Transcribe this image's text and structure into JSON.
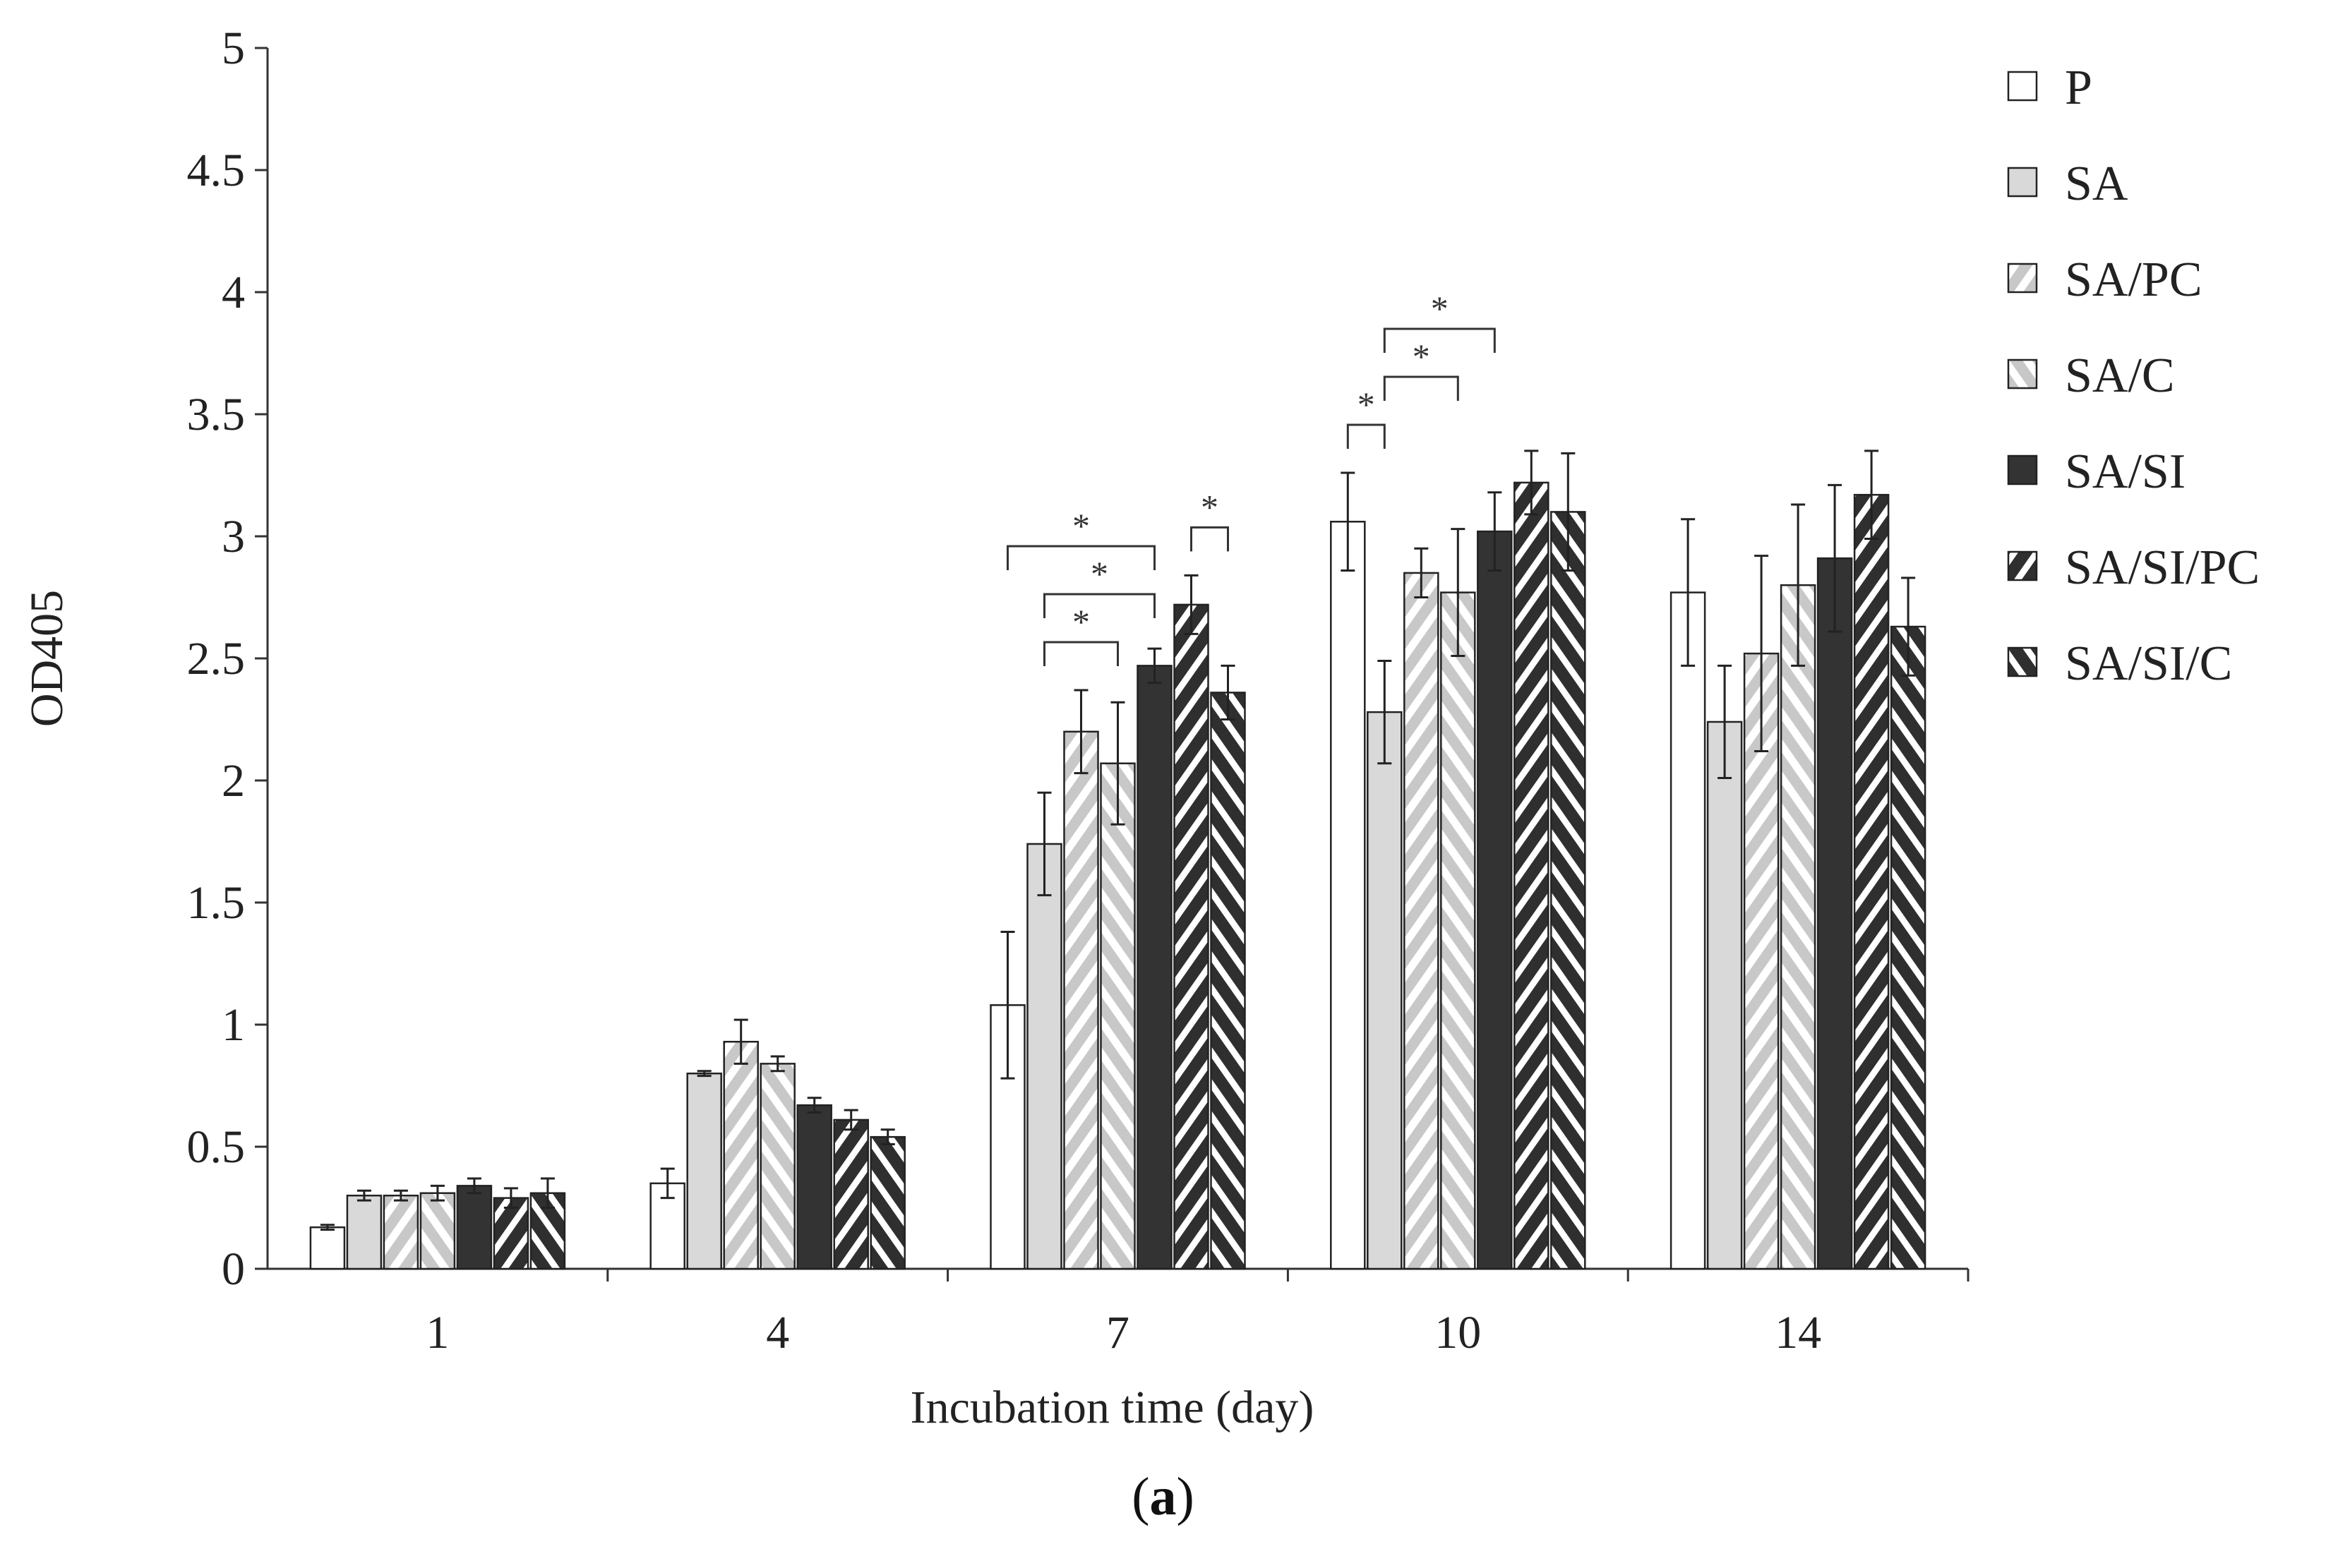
{
  "chart_data": {
    "type": "bar",
    "title": "",
    "xlabel": "Incubation time (day)",
    "ylabel": "OD405",
    "ylim": [
      0,
      5
    ],
    "yticks": [
      "0",
      "0.5",
      "1",
      "1.5",
      "2",
      "2.5",
      "3",
      "3.5",
      "4",
      "4.5",
      "5"
    ],
    "categories": [
      "1",
      "4",
      "7",
      "10",
      "14"
    ],
    "legend_position": "right",
    "series": [
      {
        "name": "P",
        "pattern": "white",
        "values": [
          0.17,
          0.35,
          1.08,
          3.06,
          2.77
        ],
        "errors": [
          0.01,
          0.06,
          0.3,
          0.2,
          0.3
        ]
      },
      {
        "name": "SA",
        "pattern": "lightgray",
        "values": [
          0.3,
          0.8,
          1.74,
          2.28,
          2.24
        ],
        "errors": [
          0.02,
          0.01,
          0.21,
          0.21,
          0.23
        ]
      },
      {
        "name": "SA/PC",
        "pattern": "hatch-light-forward",
        "values": [
          0.3,
          0.93,
          2.2,
          2.85,
          2.52
        ],
        "errors": [
          0.02,
          0.09,
          0.17,
          0.1,
          0.4
        ]
      },
      {
        "name": "SA/C",
        "pattern": "hatch-light-back",
        "values": [
          0.31,
          0.84,
          2.07,
          2.77,
          2.8
        ],
        "errors": [
          0.03,
          0.03,
          0.25,
          0.26,
          0.33
        ]
      },
      {
        "name": "SA/SI",
        "pattern": "dark",
        "values": [
          0.34,
          0.67,
          2.47,
          3.02,
          2.91
        ],
        "errors": [
          0.03,
          0.03,
          0.07,
          0.16,
          0.3
        ]
      },
      {
        "name": "SA/SI/PC",
        "pattern": "hatch-dark-forward",
        "values": [
          0.29,
          0.61,
          2.72,
          3.22,
          3.17
        ],
        "errors": [
          0.04,
          0.04,
          0.12,
          0.13,
          0.18
        ]
      },
      {
        "name": "SA/SI/C",
        "pattern": "hatch-dark-back",
        "values": [
          0.31,
          0.54,
          2.36,
          3.1,
          2.63
        ],
        "errors": [
          0.06,
          0.03,
          0.11,
          0.24,
          0.2
        ]
      }
    ],
    "annotations": [
      {
        "label": "*",
        "category": "7",
        "from": "P",
        "to": "SA/SI"
      },
      {
        "label": "*",
        "category": "7",
        "from": "SA",
        "to": "SA/SI"
      },
      {
        "label": "*",
        "category": "7",
        "from": "SA",
        "to": "SA/C"
      },
      {
        "label": "*",
        "category": "7",
        "from": "SA/SI/PC",
        "to": "SA/SI/C"
      },
      {
        "label": "*",
        "category": "10",
        "from": "P",
        "to": "SA"
      },
      {
        "label": "*",
        "category": "10",
        "from": "SA",
        "to": "SA/SI"
      },
      {
        "label": "*",
        "category": "10",
        "from": "SA",
        "to": "SA/C"
      }
    ]
  },
  "caption": {
    "open": "(",
    "letter": "a",
    "close": ")"
  }
}
